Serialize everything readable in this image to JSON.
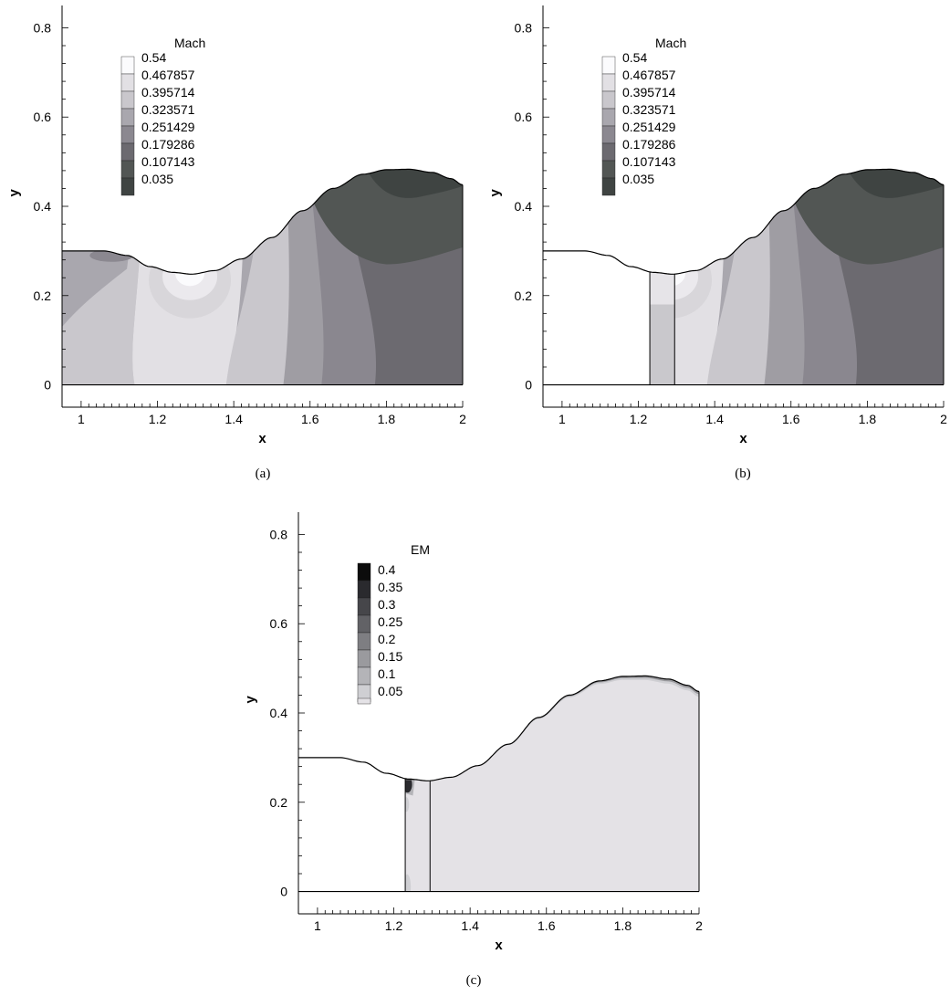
{
  "chart_data": [
    {
      "type": "contour",
      "panel_caption": "(a)",
      "xlabel": "x",
      "ylabel": "y",
      "xlim": [
        0.95,
        2.0
      ],
      "ylim": [
        -0.05,
        0.85
      ],
      "x_ticks": [
        "1",
        "1.2",
        "1.4",
        "1.6",
        "1.8",
        "2"
      ],
      "y_ticks": [
        "0",
        "0.2",
        "0.4",
        "0.6",
        "0.8"
      ],
      "legend_title": "Mach",
      "legend_levels": [
        "0.54",
        "0.467857",
        "0.395714",
        "0.323571",
        "0.251429",
        "0.179286",
        "0.107143",
        "0.035"
      ],
      "levels": [
        0.54,
        0.467857,
        0.395714,
        0.323571,
        0.251429,
        0.179286,
        0.107143,
        0.035
      ],
      "contour_x_start": 0.95,
      "inner_cut": null
    },
    {
      "type": "contour",
      "panel_caption": "(b)",
      "xlabel": "x",
      "ylabel": "y",
      "xlim": [
        0.95,
        2.0
      ],
      "ylim": [
        -0.05,
        0.85
      ],
      "x_ticks": [
        "1",
        "1.2",
        "1.4",
        "1.6",
        "1.8",
        "2"
      ],
      "y_ticks": [
        "0",
        "0.2",
        "0.4",
        "0.6",
        "0.8"
      ],
      "legend_title": "Mach",
      "legend_levels": [
        "0.54",
        "0.467857",
        "0.395714",
        "0.323571",
        "0.251429",
        "0.179286",
        "0.107143",
        "0.035"
      ],
      "levels": [
        0.54,
        0.467857,
        0.395714,
        0.323571,
        0.251429,
        0.179286,
        0.107143,
        0.035
      ],
      "contour_x_start": 1.23,
      "inner_cut": [
        1.23,
        1.295
      ]
    },
    {
      "type": "contour",
      "panel_caption": "(c)",
      "xlabel": "x",
      "ylabel": "y",
      "xlim": [
        0.95,
        2.0
      ],
      "ylim": [
        -0.05,
        0.85
      ],
      "x_ticks": [
        "1",
        "1.2",
        "1.4",
        "1.6",
        "1.8",
        "2"
      ],
      "y_ticks": [
        "0",
        "0.2",
        "0.4",
        "0.6",
        "0.8"
      ],
      "legend_title": "EM",
      "legend_levels": [
        "0.4",
        "0.35",
        "0.3",
        "0.25",
        "0.2",
        "0.15",
        "0.1",
        "0.05"
      ],
      "levels": [
        0.4,
        0.35,
        0.3,
        0.25,
        0.2,
        0.15,
        0.1,
        0.05
      ],
      "contour_x_start": 1.23,
      "inner_cut": [
        1.23,
        1.295
      ]
    }
  ],
  "colors": {
    "mach_fills": [
      "#fbfbfd",
      "#e2e0e4",
      "#c9c7cc",
      "#a9a7ae",
      "#8b8890",
      "#6c6a70",
      "#525654",
      "#3f4442",
      "#202322",
      "#0a0a0a"
    ],
    "em_fills": [
      "#e4e2e6",
      "#cfcfd3",
      "#b4b4b8",
      "#9a9a9e",
      "#7e7e82",
      "#626266",
      "#46464a",
      "#2a2a2e",
      "#0c0c0c"
    ]
  }
}
